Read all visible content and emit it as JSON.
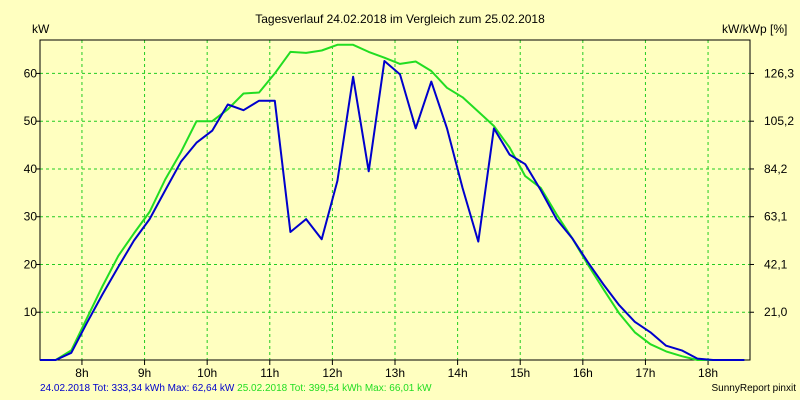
{
  "chart_data": {
    "type": "line",
    "title": "Tagesverlauf 24.02.2018 im Vergleich zum 25.02.2018",
    "ylabel_left": "kW",
    "ylabel_right": "kW/kWp [%]",
    "ylim": [
      0,
      67
    ],
    "xlim": [
      7.33,
      18.67
    ],
    "y_ticks_left": [
      10,
      20,
      30,
      40,
      50,
      60
    ],
    "y_ticks_right": [
      {
        "value": 10,
        "label": "21,0"
      },
      {
        "value": 20,
        "label": "42,1"
      },
      {
        "value": 30,
        "label": "63,1"
      },
      {
        "value": 40,
        "label": "84,2"
      },
      {
        "value": 50,
        "label": "105,2"
      },
      {
        "value": 60,
        "label": "126,3"
      }
    ],
    "x_ticks": [
      {
        "value": 8,
        "label": "8h"
      },
      {
        "value": 9,
        "label": "9h"
      },
      {
        "value": 10,
        "label": "10h"
      },
      {
        "value": 11,
        "label": "11h"
      },
      {
        "value": 12,
        "label": "12h"
      },
      {
        "value": 13,
        "label": "13h"
      },
      {
        "value": 14,
        "label": "14h"
      },
      {
        "value": 15,
        "label": "15h"
      },
      {
        "value": 16,
        "label": "16h"
      },
      {
        "value": 17,
        "label": "17h"
      },
      {
        "value": 18,
        "label": "18h"
      }
    ],
    "series": [
      {
        "name": "24.02.2018",
        "color": "#0000cc",
        "x": [
          7.33,
          7.58,
          7.83,
          8.08,
          8.33,
          8.58,
          8.83,
          9.08,
          9.33,
          9.58,
          9.83,
          10.08,
          10.33,
          10.58,
          10.83,
          11.08,
          11.33,
          11.58,
          11.83,
          12.08,
          12.33,
          12.58,
          12.83,
          13.08,
          13.33,
          13.58,
          13.83,
          14.08,
          14.33,
          14.58,
          14.83,
          15.08,
          15.33,
          15.58,
          15.83,
          16.08,
          16.33,
          16.58,
          16.83,
          17.08,
          17.33,
          17.58,
          17.83,
          18.08,
          18.33,
          18.58
        ],
        "y": [
          0,
          0,
          1.5,
          7.8,
          13.8,
          19.5,
          25,
          29.5,
          35.5,
          41.5,
          45.5,
          48,
          53.5,
          52.3,
          54.3,
          54.3,
          26.8,
          29.5,
          25.3,
          37.5,
          59.3,
          39.5,
          62.6,
          59.8,
          48.5,
          58.3,
          48.5,
          36,
          24.8,
          48.5,
          43,
          41,
          35.5,
          29.5,
          25.5,
          20.5,
          15.8,
          11.5,
          8,
          5.8,
          3,
          2,
          0.3,
          0,
          0,
          0
        ]
      },
      {
        "name": "25.02.2018",
        "color": "#22dd22",
        "x": [
          7.33,
          7.58,
          7.83,
          8.08,
          8.33,
          8.58,
          8.83,
          9.08,
          9.33,
          9.58,
          9.83,
          10.08,
          10.33,
          10.58,
          10.83,
          11.08,
          11.33,
          11.58,
          11.83,
          12.08,
          12.33,
          12.58,
          12.83,
          13.08,
          13.33,
          13.58,
          13.83,
          14.08,
          14.33,
          14.58,
          14.83,
          15.08,
          15.33,
          15.58,
          15.83,
          16.08,
          16.33,
          16.58,
          16.83,
          17.08,
          17.33,
          17.58,
          17.83,
          18.08,
          18.33,
          18.58
        ],
        "y": [
          0,
          0,
          2,
          8.8,
          15.5,
          21.8,
          26.5,
          31,
          37.8,
          43.5,
          50,
          50,
          52.5,
          55.8,
          56,
          60,
          64.5,
          64.3,
          64.8,
          66,
          66,
          64.5,
          63.3,
          62,
          62.5,
          60.5,
          57,
          55,
          52,
          49,
          44.5,
          38.5,
          36,
          30.5,
          25.5,
          20,
          14.8,
          9.8,
          5.8,
          3.3,
          1.8,
          0.8,
          0,
          0,
          0,
          0
        ]
      }
    ],
    "footer": {
      "series1_text": "24.02.2018 Tot: 333,34 kWh Max: 62,64 kW",
      "series2_text": "25.02.2018 Tot: 399,54 kWh Max: 66,01 kW",
      "credit": "SunnyReport pinxit"
    }
  }
}
